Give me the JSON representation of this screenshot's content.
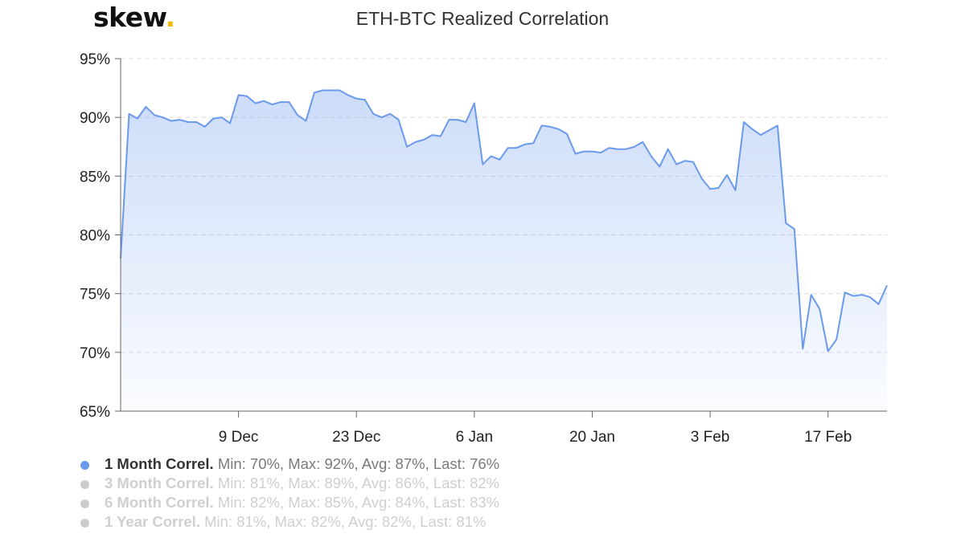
{
  "brand": {
    "name": "skew",
    "dot": ".",
    "dot_color": "#f5b800"
  },
  "chart_data": {
    "type": "area",
    "title": "ETH-BTC Realized Correlation",
    "xlabel": "",
    "ylabel": "",
    "ylim": [
      65,
      95
    ],
    "y_ticks": [
      "65%",
      "70%",
      "75%",
      "80%",
      "85%",
      "90%",
      "95%"
    ],
    "y_tick_values": [
      65,
      70,
      75,
      80,
      85,
      90,
      95
    ],
    "x_ticks": [
      "9 Dec",
      "23 Dec",
      "6 Jan",
      "20 Jan",
      "3 Feb",
      "17 Feb"
    ],
    "x_tick_days": [
      14,
      28,
      42,
      56,
      70,
      84
    ],
    "x_range_days": [
      0,
      91
    ],
    "grid": true,
    "legend_position": "bottom-left",
    "series": [
      {
        "name": "1 Month Correl",
        "stats": "Min: 70%, Max: 92%, Avg: 87%, Last: 76%",
        "color": "#6a9aec",
        "visible": true,
        "x_days": [
          0,
          1,
          2,
          3,
          4,
          5,
          6,
          7,
          8,
          9,
          10,
          11,
          12,
          13,
          14,
          15,
          16,
          17,
          18,
          19,
          20,
          21,
          22,
          23,
          24,
          25,
          26,
          27,
          28,
          29,
          30,
          31,
          32,
          33,
          34,
          35,
          36,
          37,
          38,
          39,
          40,
          41,
          42,
          43,
          44,
          45,
          46,
          47,
          48,
          49,
          50,
          51,
          52,
          53,
          54,
          55,
          56,
          57,
          58,
          59,
          60,
          61,
          62,
          63,
          64,
          65,
          66,
          67,
          68,
          69,
          70,
          71,
          72,
          73,
          74,
          75,
          76,
          77,
          78,
          79,
          80,
          81,
          82,
          83,
          84,
          85,
          86,
          87,
          88,
          89,
          90,
          91
        ],
        "values": [
          78.0,
          90.3,
          89.9,
          90.9,
          90.2,
          90.0,
          89.7,
          89.8,
          89.6,
          89.6,
          89.2,
          89.9,
          90.0,
          89.5,
          91.9,
          91.8,
          91.2,
          91.4,
          91.1,
          91.3,
          91.3,
          90.2,
          89.7,
          92.1,
          92.3,
          92.3,
          92.3,
          91.9,
          91.6,
          91.5,
          90.3,
          90.0,
          90.3,
          89.8,
          87.5,
          87.9,
          88.1,
          88.5,
          88.4,
          89.8,
          89.8,
          89.6,
          91.2,
          86.0,
          86.7,
          86.4,
          87.4,
          87.4,
          87.7,
          87.8,
          89.3,
          89.2,
          89.0,
          88.6,
          86.9,
          87.1,
          87.1,
          87.0,
          87.4,
          87.3,
          87.3,
          87.5,
          87.9,
          86.7,
          85.8,
          87.3,
          86.0,
          86.3,
          86.2,
          84.8,
          83.9,
          84.0,
          85.1,
          83.8,
          89.6,
          89.0,
          88.5,
          88.9,
          89.3,
          81.0,
          80.5,
          70.3,
          74.9,
          73.7,
          70.1,
          71.1,
          75.1,
          74.8,
          74.9,
          74.7,
          74.1,
          75.7
        ]
      },
      {
        "name": "3 Month Correl",
        "stats": "Min: 81%, Max: 89%, Avg: 86%, Last: 82%",
        "color": "#cccccc",
        "visible": false
      },
      {
        "name": "6 Month Correl",
        "stats": "Min: 82%, Max: 85%, Avg: 84%, Last: 83%",
        "color": "#cccccc",
        "visible": false
      },
      {
        "name": "1 Year Correl",
        "stats": "Min: 81%, Max: 82%, Avg: 82%, Last: 81%",
        "color": "#cccccc",
        "visible": false
      }
    ]
  }
}
